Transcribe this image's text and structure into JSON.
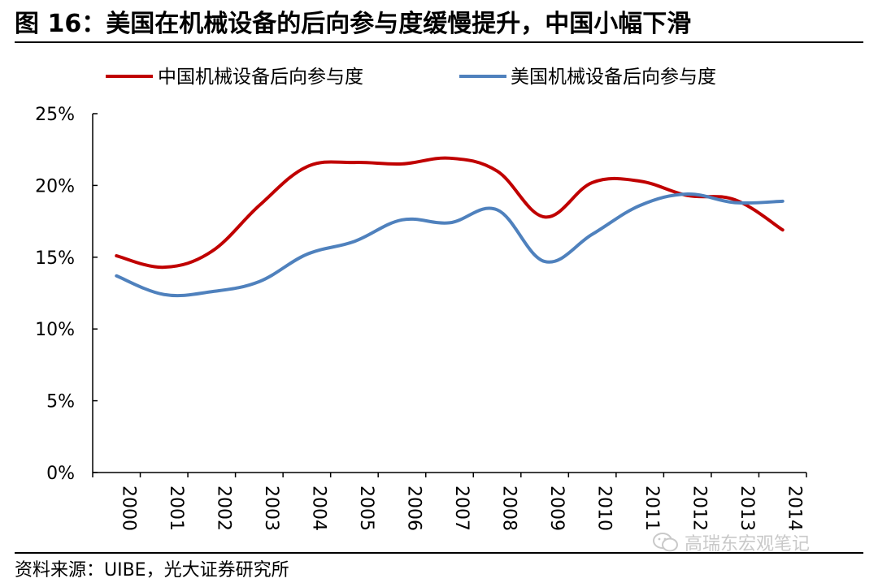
{
  "title": "图 16：美国在机械设备的后向参与度缓慢提升，中国小幅下滑",
  "source": "资料来源：UIBE，光大证券研究所",
  "watermark": {
    "text": "高瑞东宏观笔记",
    "icon": "wechat-icon"
  },
  "chart_data": {
    "type": "line",
    "title": "",
    "xlabel": "",
    "ylabel": "",
    "categories": [
      "2000",
      "2001",
      "2002",
      "2003",
      "2004",
      "2005",
      "2006",
      "2007",
      "2008",
      "2009",
      "2010",
      "2011",
      "2012",
      "2013",
      "2014"
    ],
    "ylim": [
      0,
      25
    ],
    "yticks": [
      0,
      5,
      10,
      15,
      20,
      25
    ],
    "ytick_labels": [
      "0%",
      "5%",
      "10%",
      "15%",
      "20%",
      "25%"
    ],
    "grid": false,
    "legend_position": "top",
    "series": [
      {
        "name": "中国机械设备后向参与度",
        "color": "#c00000",
        "values": [
          15.1,
          14.3,
          15.4,
          18.6,
          21.3,
          21.6,
          21.5,
          21.9,
          21.0,
          17.8,
          20.2,
          20.3,
          19.3,
          19.0,
          16.9
        ]
      },
      {
        "name": "美国机械设备后向参与度",
        "color": "#4f81bd",
        "values": [
          13.7,
          12.4,
          12.6,
          13.3,
          15.2,
          16.1,
          17.6,
          17.4,
          18.3,
          14.7,
          16.6,
          18.6,
          19.4,
          18.8,
          18.9
        ]
      }
    ]
  }
}
